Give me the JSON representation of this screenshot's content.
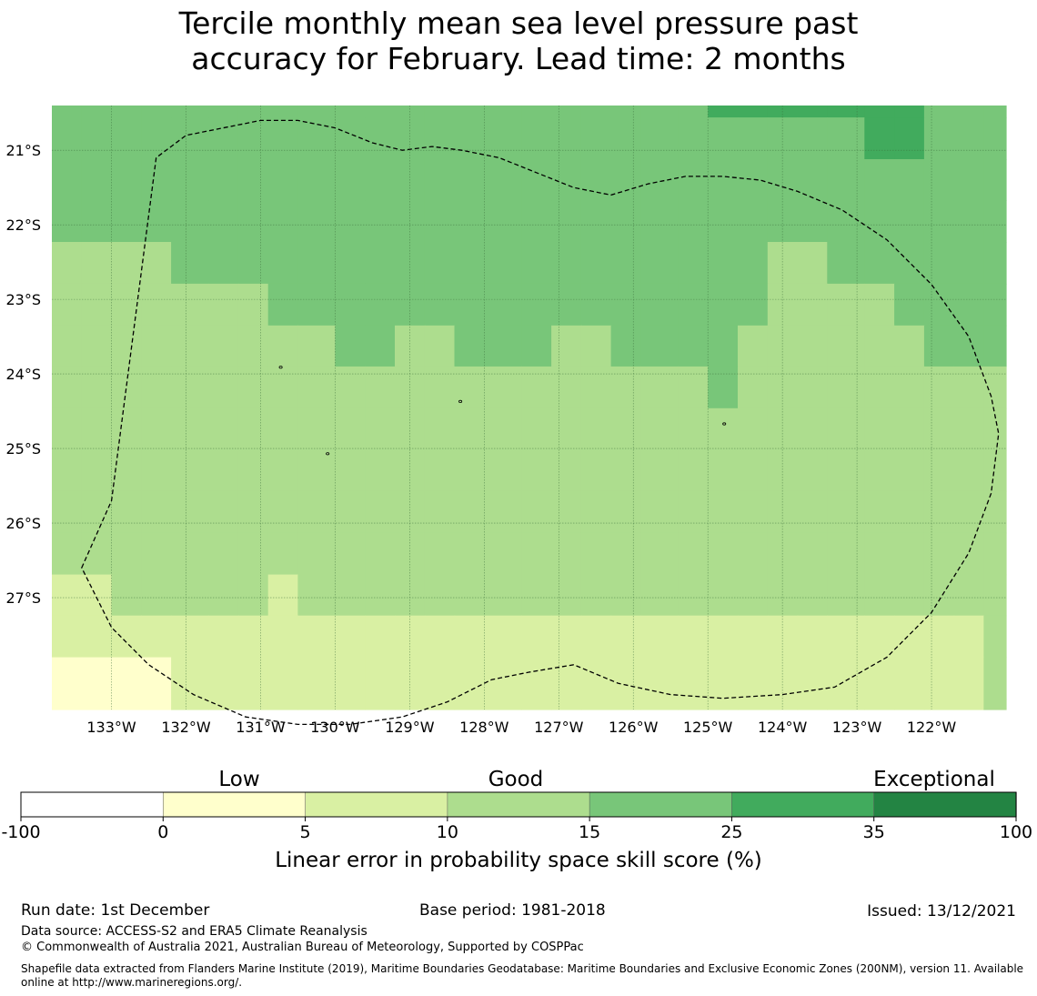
{
  "title": {
    "line1": "Tercile monthly mean sea level pressure past",
    "line2": "accuracy for February. Lead time: 2 months"
  },
  "map": {
    "lon_labels": [
      "133°W",
      "132°W",
      "131°W",
      "130°W",
      "129°W",
      "128°W",
      "127°W",
      "126°W",
      "125°W",
      "124°W",
      "123°W",
      "122°W"
    ],
    "lat_labels": [
      "21°S",
      "22°S",
      "23°S",
      "24°S",
      "25°S",
      "26°S",
      "27°S"
    ],
    "extent": {
      "lon_min": -133.8,
      "lon_max": -121.0,
      "lat_min": -28.5,
      "lat_max": -20.4
    },
    "category_colors": [
      "#ffffff",
      "#ffffcc",
      "#d9f0a3",
      "#addd8e",
      "#78c679",
      "#41ab5d",
      "#238443"
    ],
    "grid_lon_edges": [
      -133.8,
      -133.4,
      -133.0,
      -132.6,
      -132.2,
      -131.7,
      -131.3,
      -130.9,
      -130.5,
      -130.0,
      -129.6,
      -129.2,
      -128.8,
      -128.4,
      -128.0,
      -127.5,
      -127.1,
      -126.7,
      -126.3,
      -125.9,
      -125.4,
      -125.0,
      -124.6,
      -124.2,
      -123.8,
      -123.4,
      -122.9,
      -122.5,
      -122.1,
      -121.7,
      -121.3,
      -121.0
    ],
    "grid_lat_edges": [
      -20.4,
      -20.56,
      -21.12,
      -21.67,
      -22.23,
      -22.79,
      -23.35,
      -23.9,
      -24.46,
      -25.02,
      -25.57,
      -26.13,
      -26.69,
      -27.24,
      -27.8,
      -28.36,
      -28.5
    ],
    "grid_rows": [
      "4444444444444444444445555555444",
      "4444444444444444444444444455444",
      "4444444444444444444444444444444",
      "4444444444444444444444444444444",
      "3333444444444444444444433444444",
      "3333333444444444444444433334444",
      "3333333334433444334444333333444",
      "3333333333333333333334333333333",
      "3333333333333333333333333333333",
      "3333333333333333333333333333333",
      "3333333333333333333333333333333",
      "3333333333333333333333333333333",
      "2233333233333333333333333333333",
      "2222222222222222222222222222223",
      "1111222222222222222222222222223",
      "1111222222222222222222222222223"
    ],
    "eez_boundary": [
      [
        -133.4,
        -26.6
      ],
      [
        -133.0,
        -25.7
      ],
      [
        -132.4,
        -21.1
      ],
      [
        -132.0,
        -20.8
      ],
      [
        -131.5,
        -20.7
      ],
      [
        -131.0,
        -20.6
      ],
      [
        -130.5,
        -20.6
      ],
      [
        -130.0,
        -20.7
      ],
      [
        -129.5,
        -20.9
      ],
      [
        -129.1,
        -21.0
      ],
      [
        -128.7,
        -20.95
      ],
      [
        -128.3,
        -21.0
      ],
      [
        -127.8,
        -21.1
      ],
      [
        -127.3,
        -21.3
      ],
      [
        -126.8,
        -21.5
      ],
      [
        -126.3,
        -21.6
      ],
      [
        -125.8,
        -21.45
      ],
      [
        -125.3,
        -21.35
      ],
      [
        -124.8,
        -21.35
      ],
      [
        -124.3,
        -21.4
      ],
      [
        -123.8,
        -21.55
      ],
      [
        -123.2,
        -21.8
      ],
      [
        -122.6,
        -22.2
      ],
      [
        -122.0,
        -22.8
      ],
      [
        -121.5,
        -23.5
      ],
      [
        -121.2,
        -24.3
      ],
      [
        -121.1,
        -24.8
      ],
      [
        -121.2,
        -25.6
      ],
      [
        -121.5,
        -26.4
      ],
      [
        -122.0,
        -27.2
      ],
      [
        -122.6,
        -27.8
      ],
      [
        -123.3,
        -28.2
      ],
      [
        -124.0,
        -28.3
      ],
      [
        -124.8,
        -28.35
      ],
      [
        -125.5,
        -28.3
      ],
      [
        -126.2,
        -28.15
      ],
      [
        -126.8,
        -27.9
      ],
      [
        -127.4,
        -28.0
      ],
      [
        -127.9,
        -28.1
      ],
      [
        -128.5,
        -28.4
      ],
      [
        -129.1,
        -28.6
      ],
      [
        -129.8,
        -28.7
      ],
      [
        -130.5,
        -28.7
      ],
      [
        -131.2,
        -28.6
      ],
      [
        -131.9,
        -28.3
      ],
      [
        -132.5,
        -27.9
      ],
      [
        -133.0,
        -27.4
      ],
      [
        -133.4,
        -26.6
      ]
    ],
    "islands": [
      [
        -130.73,
        -23.91
      ],
      [
        -128.32,
        -24.37
      ],
      [
        -124.78,
        -24.67
      ],
      [
        -130.1,
        -25.07
      ]
    ]
  },
  "colorbar": {
    "tick_labels": [
      "-100",
      "0",
      "5",
      "10",
      "15",
      "25",
      "35",
      "100"
    ],
    "colors": [
      "#ffffff",
      "#ffffcc",
      "#d9f0a3",
      "#addd8e",
      "#78c679",
      "#41ab5d",
      "#238443"
    ],
    "categories": [
      "Low",
      "Good",
      "Exceptional"
    ],
    "axis_label": "Linear error in probability space skill score (%)"
  },
  "footer": {
    "run_date": "Run date: 1st December",
    "base_period": "Base period: 1981-2018",
    "issued": "Issued: 13/12/2021",
    "data_source": "Data source: ACCESS-S2 and ERA5 Climate Reanalysis",
    "copyright": "© Commonwealth of Australia 2021, Australian Bureau of Meteorology, Supported by COSPPac",
    "shapefile": "Shapefile data extracted from Flanders Marine Institute (2019), Maritime Boundaries Geodatabase: Maritime Boundaries and Exclusive Economic Zones (200NM), version 11. Available online at http://www.marineregions.org/."
  }
}
